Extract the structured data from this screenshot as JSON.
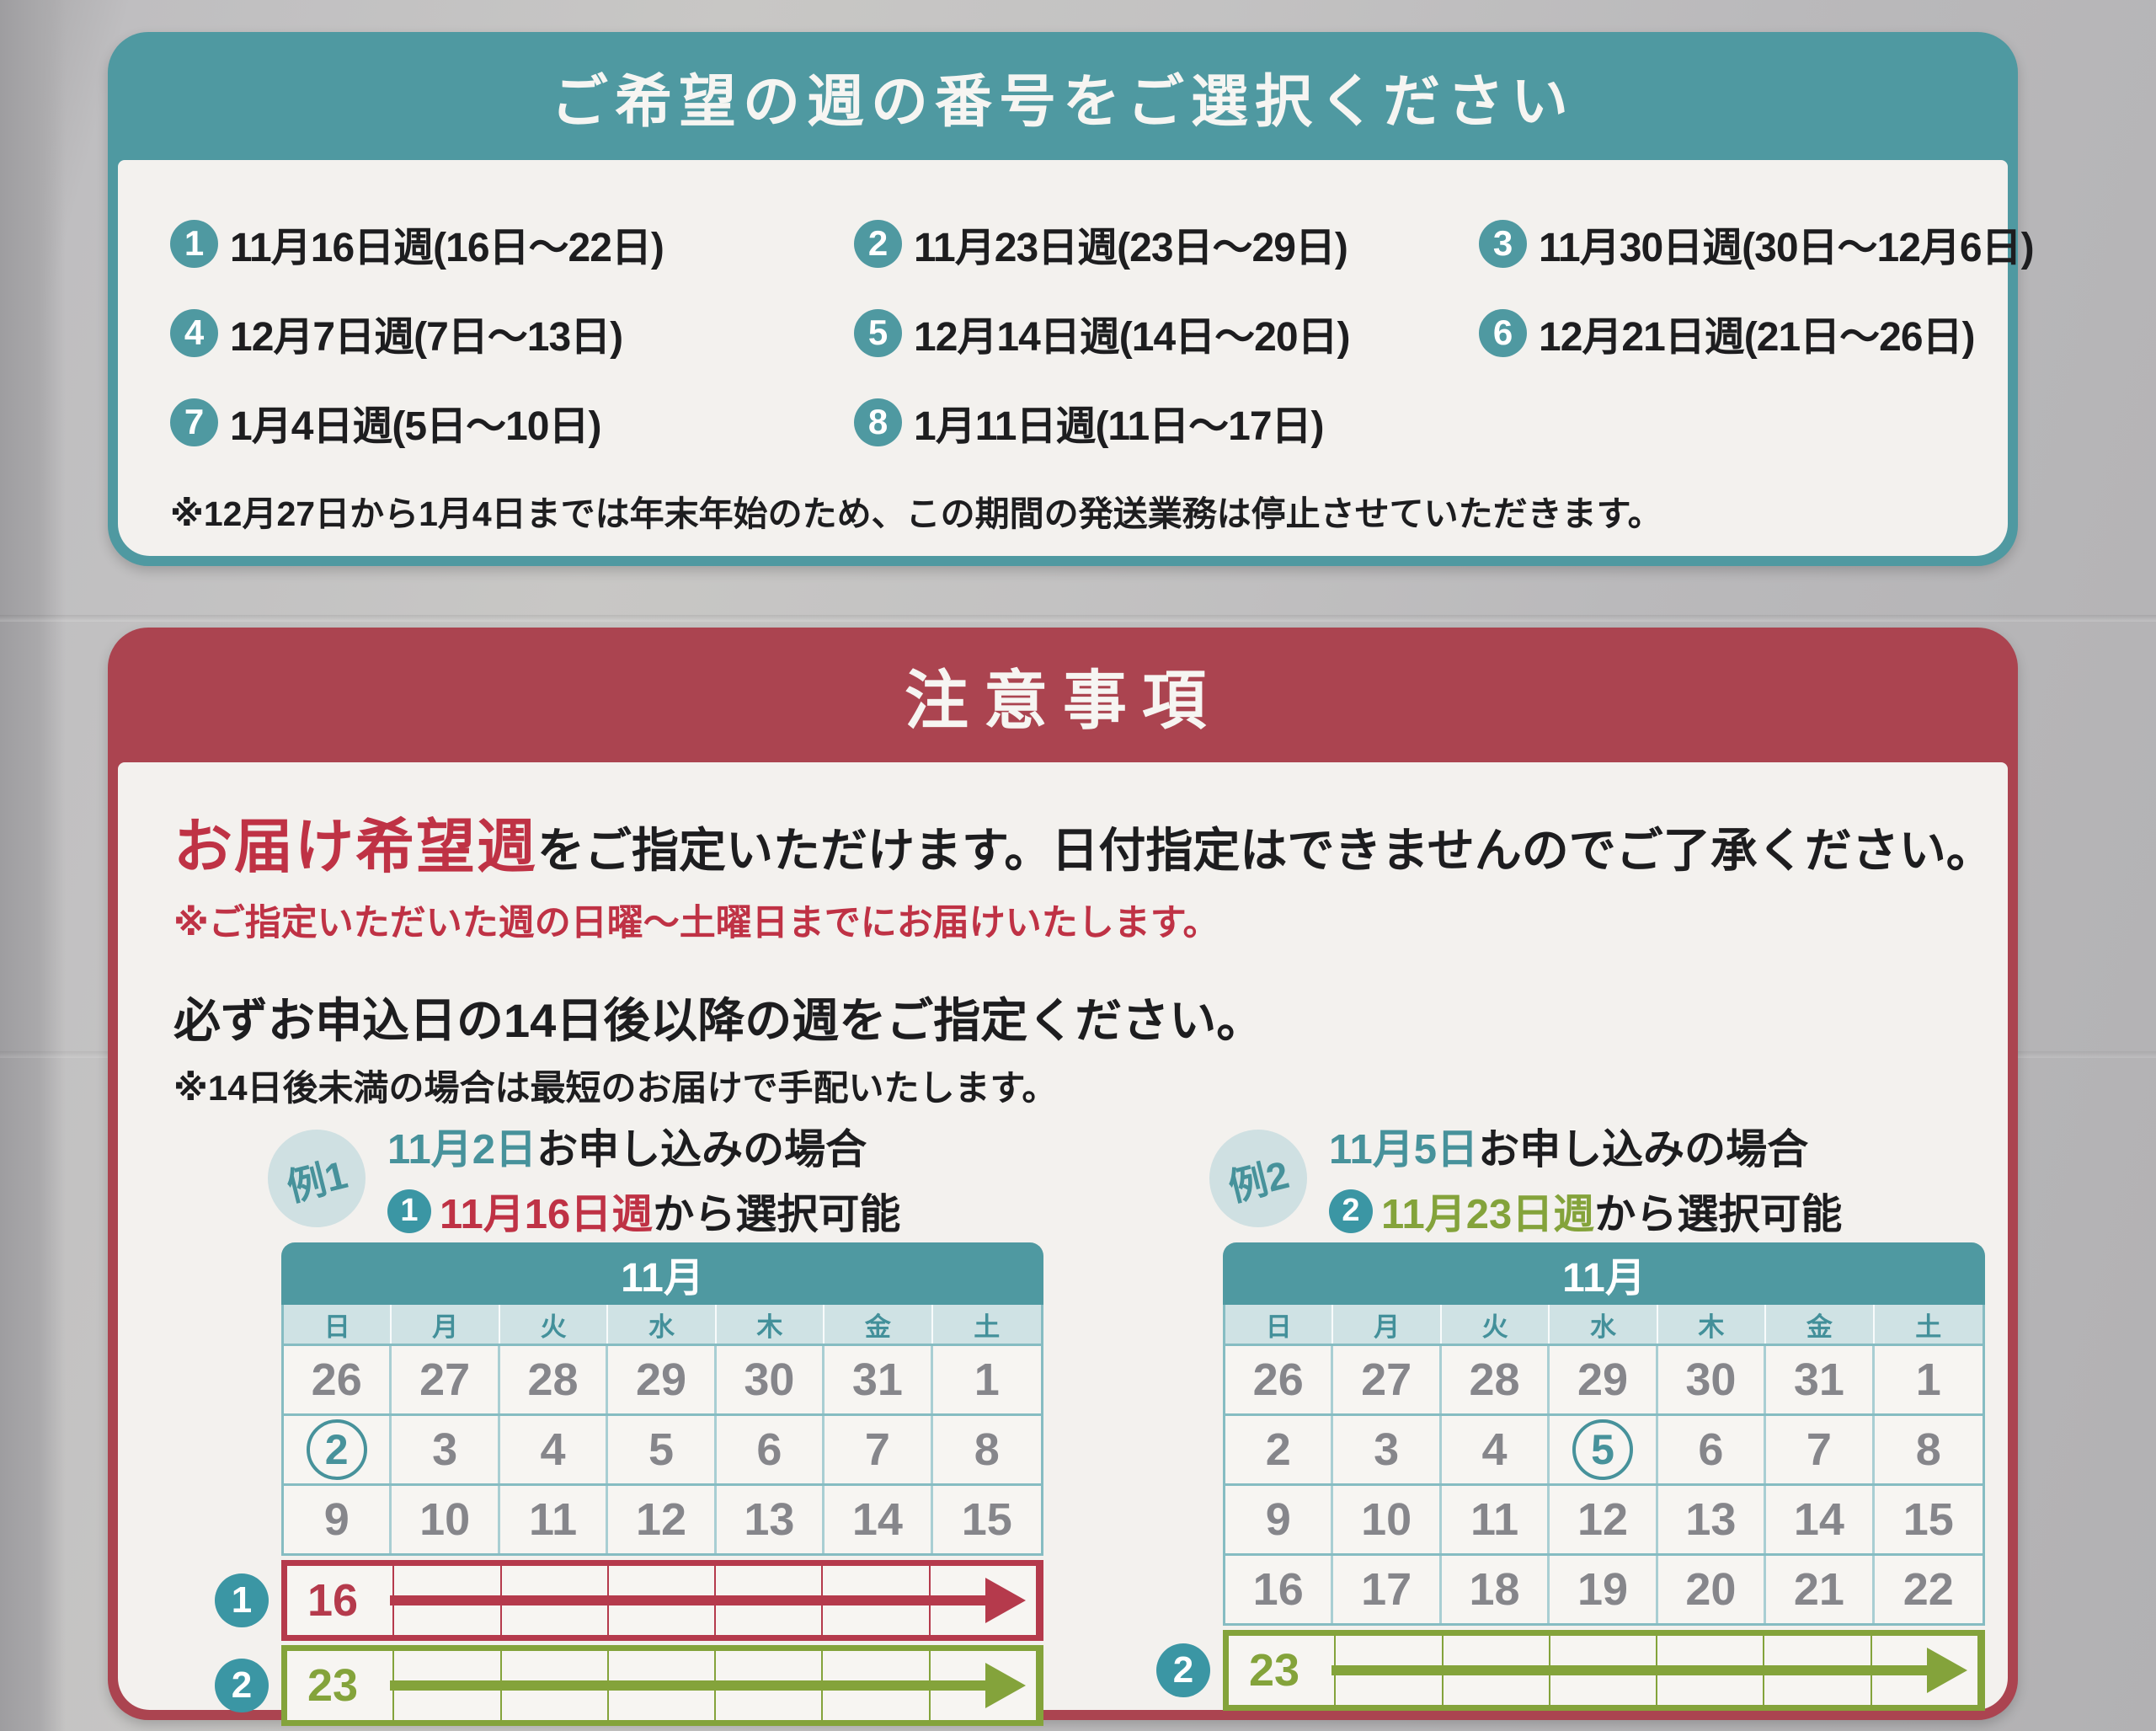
{
  "colors": {
    "teal": "#4f99a1",
    "teal_light": "#cfe2e4",
    "teal_text": "#47929b",
    "red_band": "#ab4450",
    "red_text": "#bf3245",
    "green_text": "#84a33b",
    "date_gray": "#86868b",
    "paper_white": "#f3f1ee"
  },
  "top_box": {
    "title": "ご希望の週の番号をご選択ください",
    "weeks": [
      {
        "num": "1",
        "label": "11月16日週(16日～22日)"
      },
      {
        "num": "2",
        "label": "11月23日週(23日～29日)"
      },
      {
        "num": "3",
        "label": "11月30日週(30日～12月6日)"
      },
      {
        "num": "4",
        "label": "12月7日週(7日～13日)"
      },
      {
        "num": "5",
        "label": "12月14日週(14日～20日)"
      },
      {
        "num": "6",
        "label": "12月21日週(21日～26日)"
      },
      {
        "num": "7",
        "label": "1月4日週(5日～10日)"
      },
      {
        "num": "8",
        "label": "1月11日週(11日～17日)"
      }
    ],
    "note": "※12月27日から1月4日までは年末年始のため、この期間の発送業務は停止させていただきます。"
  },
  "caution_box": {
    "title": "注意事項",
    "p1_em": "お届け希望週",
    "p1_rest": "をご指定いただけます。日付指定はできませんのでご了承ください。",
    "p1_note": "※ご指定いただいた週の日曜～土曜日までにお届けいたします。",
    "p2": "必ずお申込日の14日後以降の週をご指定ください。",
    "p2_note": "※14日後未満の場合は最短のお届けで手配いたします。",
    "examples": [
      {
        "badge": "例1",
        "apply_date": "11月2日",
        "apply_rest": "お申し込みの場合",
        "pick_num": "1",
        "pick_week": "11月16日週",
        "pick_rest": "から選択可能",
        "calendar": {
          "month": "11月",
          "weekdays": [
            "日",
            "月",
            "火",
            "水",
            "木",
            "金",
            "土"
          ],
          "date_rows": [
            [
              "26",
              "27",
              "28",
              "29",
              "30",
              "31",
              "1"
            ],
            [
              "2",
              "3",
              "4",
              "5",
              "6",
              "7",
              "8"
            ],
            [
              "9",
              "10",
              "11",
              "12",
              "13",
              "14",
              "15"
            ]
          ],
          "circled": {
            "row": 1,
            "col": 0
          },
          "arrow_rows": [
            {
              "marker": "1",
              "date": "16",
              "color": "#b53a4c"
            },
            {
              "marker": "2",
              "date": "23",
              "color": "#84a33b"
            }
          ]
        }
      },
      {
        "badge": "例2",
        "apply_date": "11月5日",
        "apply_rest": "お申し込みの場合",
        "pick_num": "2",
        "pick_week": "11月23日週",
        "pick_rest": "から選択可能",
        "calendar": {
          "month": "11月",
          "weekdays": [
            "日",
            "月",
            "火",
            "水",
            "木",
            "金",
            "土"
          ],
          "date_rows": [
            [
              "26",
              "27",
              "28",
              "29",
              "30",
              "31",
              "1"
            ],
            [
              "2",
              "3",
              "4",
              "5",
              "6",
              "7",
              "8"
            ],
            [
              "9",
              "10",
              "11",
              "12",
              "13",
              "14",
              "15"
            ],
            [
              "16",
              "17",
              "18",
              "19",
              "20",
              "21",
              "22"
            ]
          ],
          "circled": {
            "row": 1,
            "col": 3
          },
          "arrow_rows": [
            {
              "marker": "2",
              "date": "23",
              "color": "#84a33b"
            }
          ]
        }
      }
    ]
  }
}
